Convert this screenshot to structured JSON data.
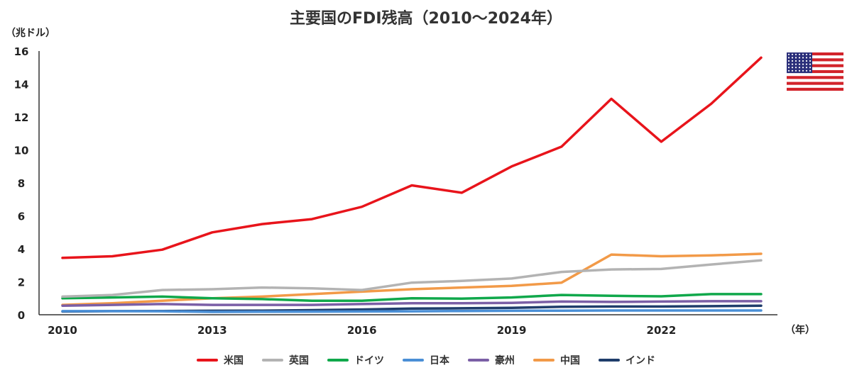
{
  "chart_data": {
    "type": "line",
    "title": "主要国のFDI残高（2010～2024年）",
    "ylabel": "（兆ドル）",
    "xlabel": "（年）",
    "x": [
      2010,
      2011,
      2012,
      2013,
      2014,
      2015,
      2016,
      2017,
      2018,
      2019,
      2020,
      2021,
      2022,
      2023,
      2024
    ],
    "x_tick_labels": [
      "2010",
      "2013",
      "2016",
      "2019",
      "2022"
    ],
    "y_tick_labels": [
      "0",
      "2",
      "4",
      "6",
      "8",
      "10",
      "12",
      "14",
      "16"
    ],
    "ylim": [
      0,
      16
    ],
    "grid": false,
    "legend_position": "bottom",
    "series": [
      {
        "name": "米国",
        "color": "#e8141b",
        "values": [
          3.45,
          3.55,
          3.95,
          5.0,
          5.5,
          5.8,
          6.55,
          7.85,
          7.4,
          9.0,
          10.2,
          13.1,
          10.5,
          12.8,
          15.6
        ]
      },
      {
        "name": "英国",
        "color": "#b3b3b3",
        "values": [
          1.1,
          1.2,
          1.5,
          1.55,
          1.65,
          1.6,
          1.5,
          1.95,
          2.05,
          2.2,
          2.6,
          2.75,
          2.78,
          3.05,
          3.3
        ]
      },
      {
        "name": "ドイツ",
        "color": "#10a84b",
        "values": [
          1.0,
          1.05,
          1.1,
          1.0,
          0.95,
          0.85,
          0.85,
          1.0,
          0.98,
          1.05,
          1.2,
          1.15,
          1.12,
          1.25,
          1.25
        ]
      },
      {
        "name": "日本",
        "color": "#4a8fd6",
        "values": [
          0.22,
          0.22,
          0.21,
          0.17,
          0.18,
          0.19,
          0.2,
          0.21,
          0.23,
          0.24,
          0.25,
          0.26,
          0.26,
          0.26,
          0.26
        ]
      },
      {
        "name": "豪州",
        "color": "#7b5fa6",
        "values": [
          0.55,
          0.6,
          0.65,
          0.6,
          0.6,
          0.6,
          0.65,
          0.7,
          0.7,
          0.72,
          0.8,
          0.78,
          0.8,
          0.82,
          0.82
        ]
      },
      {
        "name": "中国",
        "color": "#f29a48",
        "values": [
          0.6,
          0.7,
          0.85,
          1.0,
          1.1,
          1.25,
          1.4,
          1.55,
          1.65,
          1.75,
          1.95,
          3.65,
          3.55,
          3.6,
          3.7
        ]
      },
      {
        "name": "インド",
        "color": "#1f3d6b",
        "values": [
          0.2,
          0.22,
          0.23,
          0.24,
          0.25,
          0.28,
          0.32,
          0.38,
          0.39,
          0.42,
          0.48,
          0.5,
          0.5,
          0.52,
          0.55
        ]
      }
    ]
  },
  "flag": {
    "icon": "us-flag-icon",
    "colors": {
      "red": "#d2232a",
      "white": "#ffffff",
      "blue": "#2b2f7a"
    }
  }
}
